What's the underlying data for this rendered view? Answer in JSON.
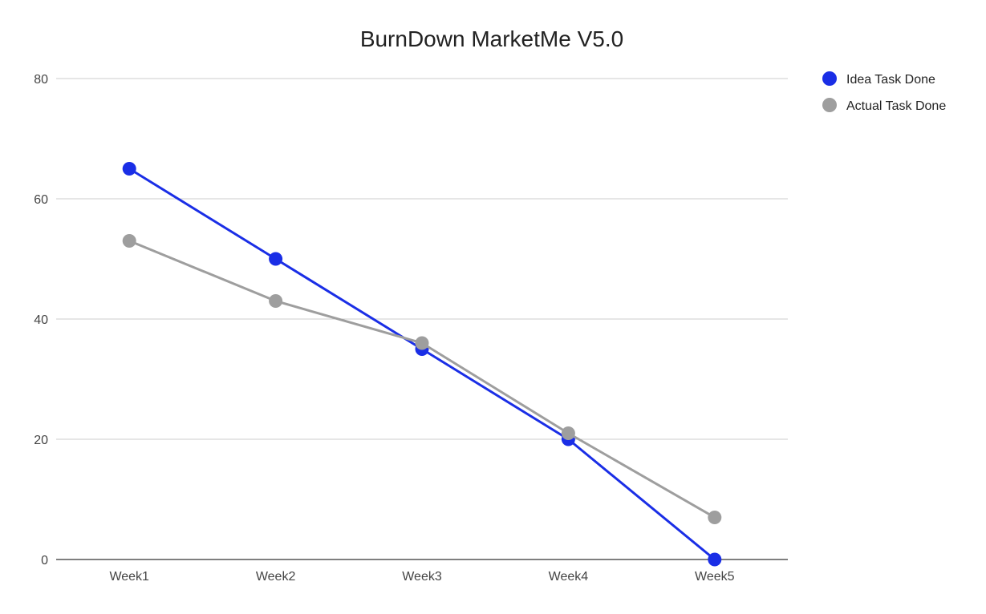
{
  "chart_data": {
    "type": "line",
    "title": "BurnDown MarketMe V5.0",
    "xlabel": "",
    "ylabel": "",
    "categories": [
      "Week1",
      "Week2",
      "Week3",
      "Week4",
      "Week5"
    ],
    "ylim": [
      0,
      80
    ],
    "yticks": [
      0,
      20,
      40,
      60,
      80
    ],
    "grid": true,
    "legend_position": "top-right",
    "series": [
      {
        "name": "Idea Task Done",
        "color": "#1a2ee6",
        "values": [
          65,
          50,
          35,
          20,
          0
        ]
      },
      {
        "name": "Actual Task Done",
        "color": "#9e9e9e",
        "values": [
          53,
          43,
          36,
          21,
          7
        ]
      }
    ]
  }
}
